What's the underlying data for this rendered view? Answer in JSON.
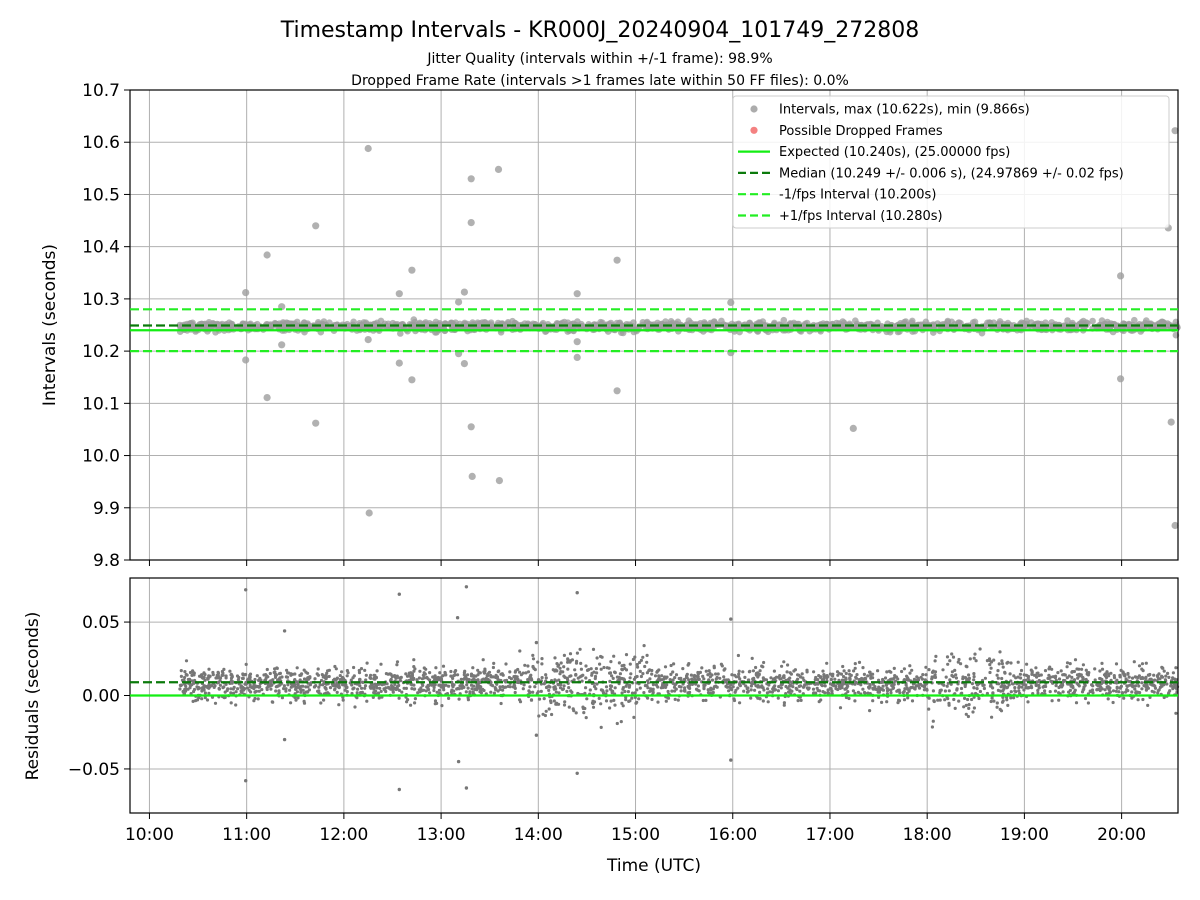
{
  "chart_data": [
    {
      "type": "scatter",
      "panel": "top",
      "title": "Timestamp Intervals - KR000J_20240904_101749_272808",
      "subtitle_lines": [
        "Jitter Quality (intervals within +/-1 frame): 98.9%",
        "Dropped Frame Rate (intervals >1 frames late within 50 FF files): 0.0%"
      ],
      "ylabel": "Intervals (seconds)",
      "xlabel": "",
      "ylim": [
        9.8,
        10.7
      ],
      "yticks": [
        9.8,
        9.9,
        10.0,
        10.1,
        10.2,
        10.3,
        10.4,
        10.5,
        10.6,
        10.7
      ],
      "ytick_labels": [
        "9.8",
        "9.9",
        "10.0",
        "10.1",
        "10.2",
        "10.3",
        "10.4",
        "10.5",
        "10.6",
        "10.7"
      ],
      "xlim_hours": [
        9.8,
        20.58
      ],
      "grid": true,
      "legend_position": "top-right",
      "legend": [
        {
          "label": "Intervals, max (10.622s), min (9.866s)",
          "kind": "marker",
          "color": "#9e9e9e"
        },
        {
          "label": "Possible Dropped Frames",
          "kind": "marker",
          "color": "#f26b6b"
        },
        {
          "label": "Expected (10.240s), (25.00000 fps)",
          "kind": "solid",
          "color": "#13ee13"
        },
        {
          "label": "Median (10.249 +/- 0.006 s), (24.97869 +/- 0.02 fps)",
          "kind": "dashed",
          "color": "#0b7a0b"
        },
        {
          "label": "-1/fps Interval (10.200s)",
          "kind": "dashed",
          "color": "#22ee22"
        },
        {
          "label": "+1/fps Interval (10.280s)",
          "kind": "dashed",
          "color": "#22ee22"
        }
      ],
      "reference_lines": {
        "expected": 10.24,
        "median": 10.249,
        "minus_one_frame": 10.2,
        "plus_one_frame": 10.28
      },
      "series": [
        {
          "name": "Intervals, max (10.622s), min (9.866s)",
          "color": "#9e9e9e",
          "dense_band": {
            "x_start_hour": 10.31,
            "x_end_hour": 20.58,
            "center": 10.247,
            "spread": 0.01
          },
          "outliers": [
            [
              10.99,
              10.312
            ],
            [
              10.99,
              10.183
            ],
            [
              11.21,
              10.384
            ],
            [
              11.21,
              10.111
            ],
            [
              11.36,
              10.285
            ],
            [
              11.36,
              10.212
            ],
            [
              11.71,
              10.44
            ],
            [
              11.71,
              10.062
            ],
            [
              12.25,
              10.588
            ],
            [
              12.25,
              10.222
            ],
            [
              12.26,
              9.89
            ],
            [
              12.57,
              10.31
            ],
            [
              12.57,
              10.177
            ],
            [
              12.7,
              10.355
            ],
            [
              12.7,
              10.145
            ],
            [
              13.18,
              10.294
            ],
            [
              13.18,
              10.195
            ],
            [
              13.24,
              10.313
            ],
            [
              13.24,
              10.176
            ],
            [
              13.31,
              10.53
            ],
            [
              13.31,
              10.446
            ],
            [
              13.31,
              10.055
            ],
            [
              13.32,
              9.96
            ],
            [
              13.59,
              10.548
            ],
            [
              13.6,
              9.952
            ],
            [
              14.4,
              10.31
            ],
            [
              14.4,
              10.218
            ],
            [
              14.4,
              10.188
            ],
            [
              14.81,
              10.374
            ],
            [
              14.81,
              10.124
            ],
            [
              15.98,
              10.293
            ],
            [
              15.98,
              10.197
            ],
            [
              17.24,
              10.052
            ],
            [
              19.99,
              10.344
            ],
            [
              19.99,
              10.147
            ],
            [
              20.48,
              10.436
            ],
            [
              20.51,
              10.064
            ],
            [
              20.55,
              10.622
            ],
            [
              20.55,
              9.866
            ]
          ]
        },
        {
          "name": "Possible Dropped Frames",
          "color": "#f26b6b",
          "values": []
        }
      ]
    },
    {
      "type": "scatter",
      "panel": "bottom",
      "ylabel": "Residuals (seconds)",
      "xlabel": "Time (UTC)",
      "ylim": [
        -0.08,
        0.08
      ],
      "yticks": [
        -0.05,
        0.0,
        0.05
      ],
      "ytick_labels": [
        "−0.05",
        "0.00",
        "0.05"
      ],
      "xlim_hours": [
        9.8,
        20.58
      ],
      "xticks_hours": [
        10,
        11,
        12,
        13,
        14,
        15,
        16,
        17,
        18,
        19,
        20
      ],
      "xtick_labels": [
        "10:00",
        "11:00",
        "12:00",
        "13:00",
        "14:00",
        "15:00",
        "16:00",
        "17:00",
        "18:00",
        "19:00",
        "20:00"
      ],
      "grid": true,
      "reference_lines": {
        "zero": 0.0,
        "median_residual": 0.009
      },
      "series": [
        {
          "name": "Residuals",
          "color": "#777777",
          "dense_band": {
            "x_start_hour": 10.31,
            "x_end_hour": 20.58,
            "center": 0.008,
            "spread": 0.01
          },
          "outliers": [
            [
              10.99,
              0.072
            ],
            [
              10.99,
              -0.058
            ],
            [
              11.39,
              0.044
            ],
            [
              11.39,
              -0.03
            ],
            [
              12.57,
              0.069
            ],
            [
              12.57,
              -0.064
            ],
            [
              13.17,
              0.053
            ],
            [
              13.18,
              -0.045
            ],
            [
              13.26,
              0.074
            ],
            [
              13.26,
              -0.063
            ],
            [
              13.98,
              0.036
            ],
            [
              13.98,
              -0.027
            ],
            [
              14.4,
              0.07
            ],
            [
              14.4,
              -0.053
            ],
            [
              15.98,
              0.052
            ],
            [
              15.98,
              -0.044
            ]
          ]
        }
      ]
    }
  ]
}
